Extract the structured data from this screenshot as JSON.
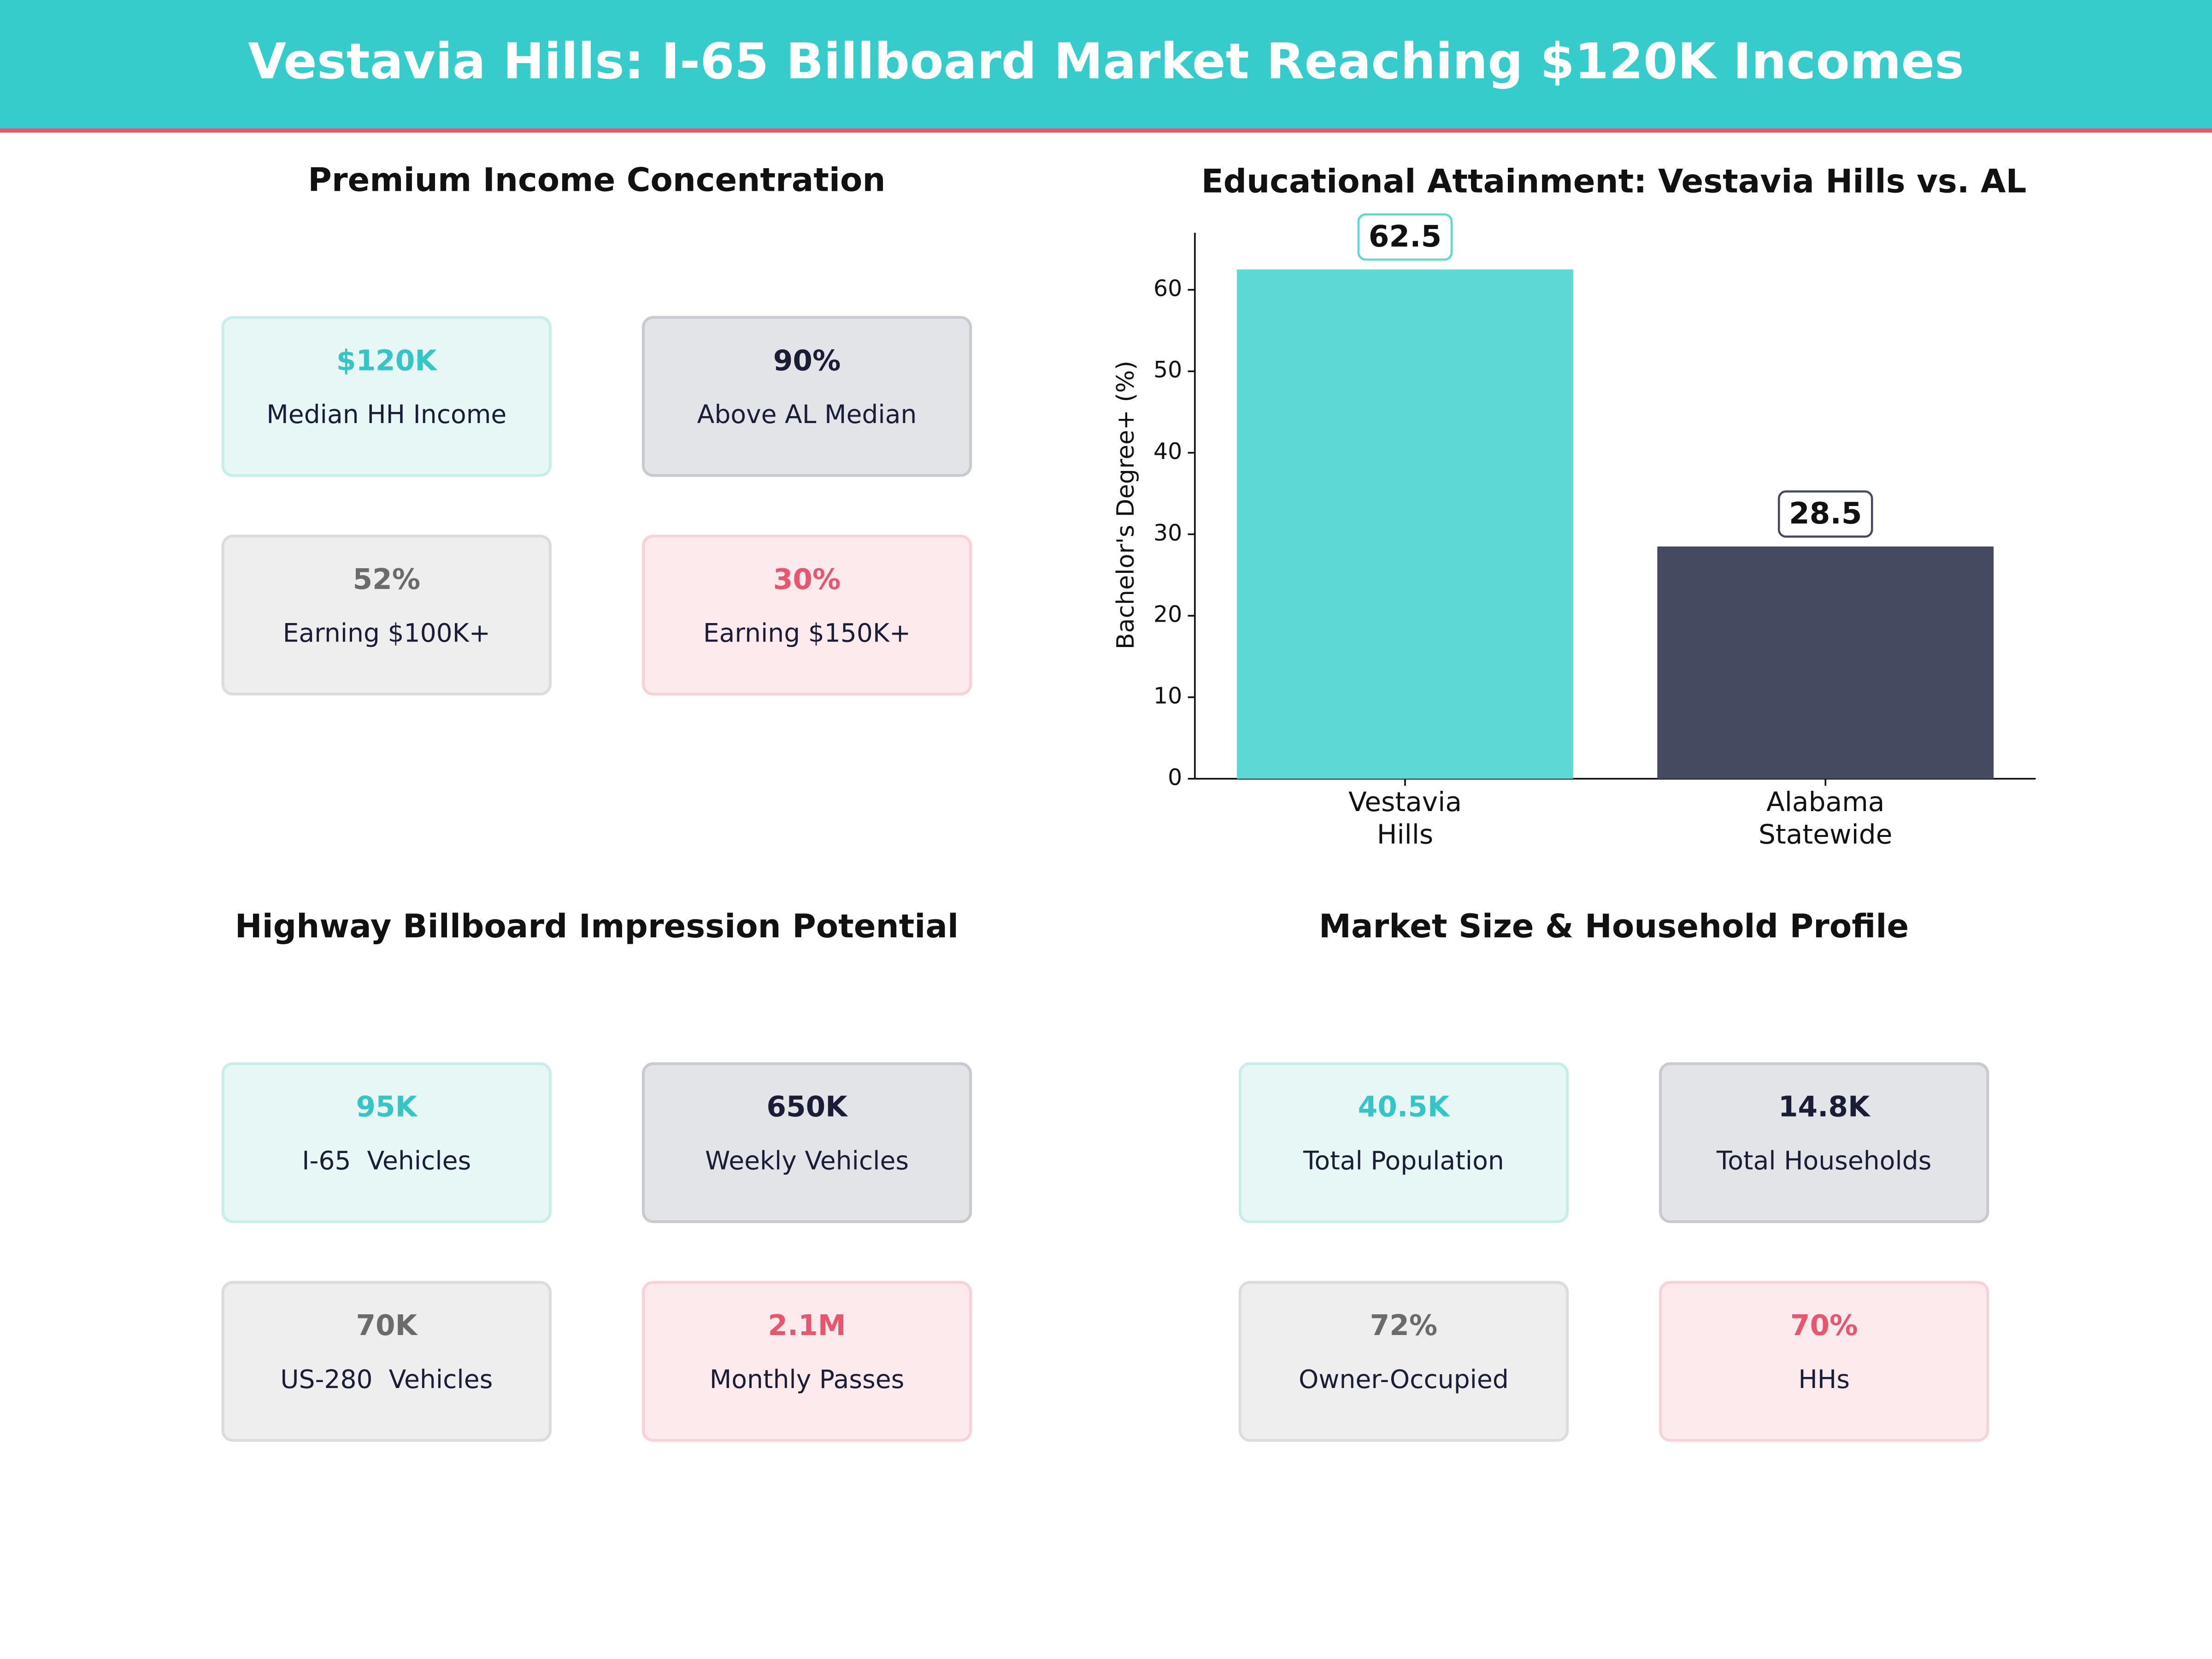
{
  "header": {
    "title": "Vestavia Hills: I-65 Billboard Market Reaching $120K Incomes"
  },
  "panels": [
    {
      "title": "Premium Income Concentration",
      "cards": [
        {
          "value": "$120K",
          "label": "Median HH Income"
        },
        {
          "value": "90%",
          "label": "Above AL Median"
        },
        {
          "value": "52%",
          "label": "Earning $100K+"
        },
        {
          "value": "30%",
          "label": "Earning $150K+"
        }
      ]
    },
    {
      "title": "Highway Billboard Impression Potential",
      "cards": [
        {
          "value": "95K",
          "label": "I-65  Vehicles"
        },
        {
          "value": "650K",
          "label": "Weekly Vehicles"
        },
        {
          "value": "70K",
          "label": "US-280  Vehicles"
        },
        {
          "value": "2.1M",
          "label": "Monthly Passes"
        }
      ]
    },
    {
      "title": "Market Size & Household Profile",
      "cards": [
        {
          "value": "40.5K",
          "label": "Total Population"
        },
        {
          "value": "14.8K",
          "label": "Total Households"
        },
        {
          "value": "72%",
          "label": "Owner-Occupied"
        },
        {
          "value": "70%",
          "label": "HHs"
        }
      ]
    }
  ],
  "chart_data": {
    "type": "bar",
    "title": "Educational Attainment: Vestavia Hills vs. AL",
    "y_label": "Bachelor's Degree+ (%)",
    "categories": [
      "Vestavia Hills",
      "Alabama Statewide"
    ],
    "values": [
      62.5,
      28.5
    ],
    "colors": [
      "#5dd8d4",
      "#464a60"
    ],
    "ylim": [
      0,
      67
    ],
    "yticks": [
      0,
      10,
      20,
      30,
      40,
      50,
      60
    ]
  }
}
